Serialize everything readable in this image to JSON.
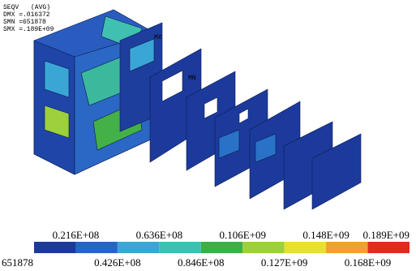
{
  "header": {
    "quantity": "SEQV",
    "average": "(AVG)",
    "dmx": "DMX =.016372",
    "smn": "SMN =651878",
    "smx": "SMX =.189E+09"
  },
  "markers": {
    "max": "MX",
    "min": "MN"
  },
  "legend": {
    "colors": [
      "#1c3a9c",
      "#2466c6",
      "#3aa6d6",
      "#3cc0b4",
      "#3cb044",
      "#9cd03c",
      "#e8e030",
      "#f0a030",
      "#e02c1c"
    ],
    "labels": [
      "651878",
      "0.216E+08",
      "0.426E+08",
      "0.636E+08",
      "0.846E+08",
      "0.106E+09",
      "0.127E+09",
      "0.148E+09",
      "0.168E+09",
      "0.189E+09"
    ]
  }
}
